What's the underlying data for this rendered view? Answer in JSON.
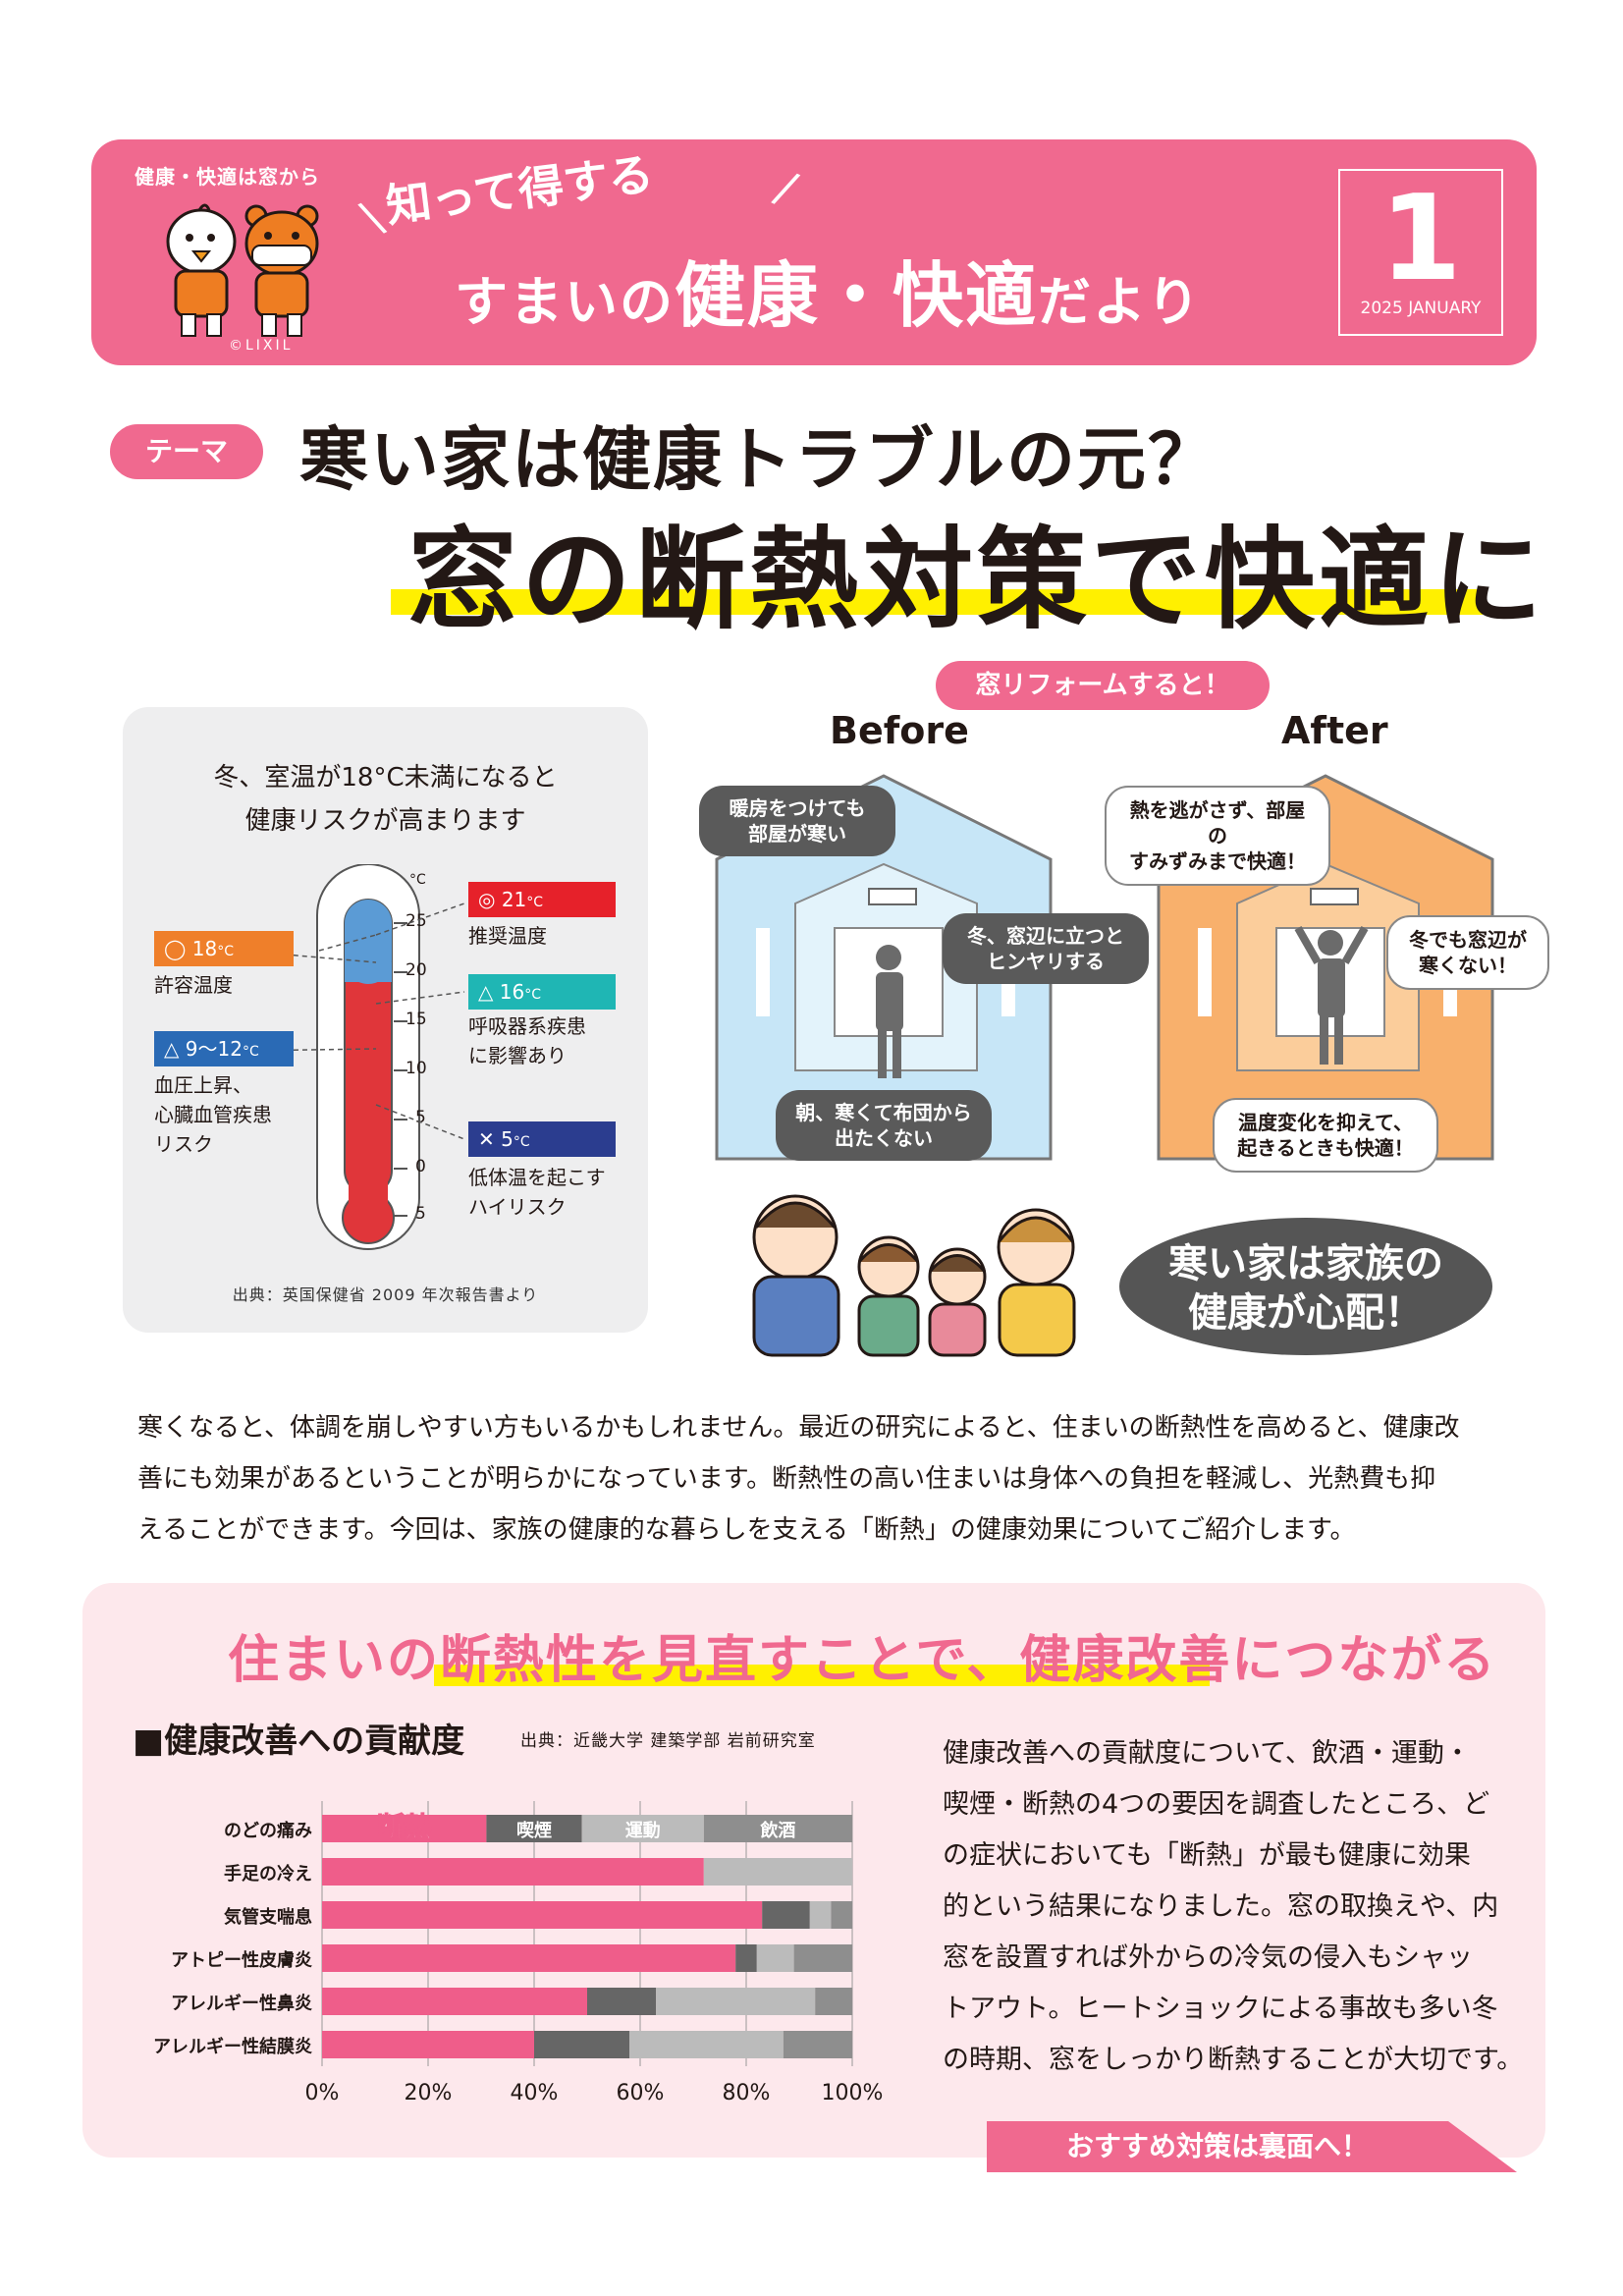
{
  "header": {
    "tagline": "健康・快適は窓から",
    "brand": "©LIXIL",
    "subtitle": "知って得する",
    "title_a": "すまいの",
    "title_b": "健康・快適",
    "title_c": "だより",
    "issue_number": "1",
    "issue_date": "2025 JANUARY",
    "color_accent": "#f0698f"
  },
  "theme": {
    "pill": "テーマ",
    "line1": "寒い家は健康トラブルの元？",
    "line2": "窓の断熱対策で快適に",
    "highlight_color": "#fff000"
  },
  "thermometer": {
    "caption_line1": "冬、室温が18°C未満になると",
    "caption_line2": "健康リスクが高まります",
    "unit": "°C",
    "scale": [
      "25",
      "20",
      "15",
      "10",
      "5",
      "0",
      "5"
    ],
    "levels": [
      {
        "symbol": "◎",
        "temp": "21",
        "unit": "°C",
        "note1": "推奨温度",
        "note2": "",
        "color": "#e6212a"
      },
      {
        "symbol": "◯",
        "temp": "18",
        "unit": "°C",
        "note1": "許容温度",
        "note2": "",
        "color": "#ef7f2a"
      },
      {
        "symbol": "△",
        "temp": "16",
        "unit": "°C",
        "note1": "呼吸器系疾患",
        "note2": "に影響あり",
        "color": "#1fb6b4"
      },
      {
        "symbol": "△",
        "temp": "9〜12",
        "unit": "°C",
        "note1": "血圧上昇、",
        "note2": "心臓血管疾患",
        "note3": "リスク",
        "color": "#2a6ab5"
      },
      {
        "symbol": "✕",
        "temp": "5",
        "unit": "°C",
        "note1": "低体温を起こす",
        "note2": "ハイリスク",
        "color": "#2b3d8f"
      }
    ],
    "source": "出典：英国保健省 2009 年次報告書より"
  },
  "reform": {
    "pill": "窓リフォームすると！",
    "before_label": "Before",
    "after_label": "After",
    "before_bubbles": [
      "暖房をつけても",
      "部屋が寒い",
      "冬、窓辺に立つと",
      "ヒンヤリする",
      "朝、寒くて布団から",
      "出たくない"
    ],
    "after_bubbles": [
      "熱を逃がさず、部屋の",
      "すみずみまで快適！",
      "冬でも窓辺が",
      "寒くない！",
      "温度変化を抑えて、",
      "起きるときも快適！"
    ],
    "family_line1": "寒い家は家族の",
    "family_line2": "健康が心配！"
  },
  "intro": {
    "line1": "寒くなると、体調を崩しやすい方もいるかもしれません。最近の研究によると、住まいの断熱性を高めると、健康改",
    "line2": "善にも効果があるということが明らかになっています。断熱性の高い住まいは身体への負担を軽減し、光熱費も抑",
    "line3": "えることができます。今回は、家族の健康的な暮らしを支える「断熱」の健康効果についてご紹介します。"
  },
  "section": {
    "title": "住まいの断熱性を見直すことで、健康改善につながる",
    "chart_title": "■健康改善への貢献度",
    "chart_source": "出典：近畿大学 建築学部 岩前研究室",
    "description": [
      "健康改善への貢献度について、飲酒・運動・",
      "喫煙・断熱の4つの要因を調査したところ、ど",
      "の症状においても「断熱」が最も健康に効果",
      "的という結果になりました。窓の取換えや、内",
      "窓を設置すれば外からの冷気の侵入もシャッ",
      "トアウト。ヒートショックによる事故も多い冬",
      "の時期、窓をしっかり断熱することが大切です。"
    ],
    "cta": "おすすめ対策は裏面へ！"
  },
  "chart_data": {
    "type": "bar",
    "orientation": "horizontal",
    "stacked": true,
    "title": "■健康改善への貢献度",
    "categories": [
      "のどの痛み",
      "手足の冷え",
      "気管支喘息",
      "アトピー性皮膚炎",
      "アレルギー性鼻炎",
      "アレルギー性結膜炎"
    ],
    "series": [
      {
        "name": "断熱",
        "color": "#ef5d8a",
        "values": [
          31,
          72,
          83,
          78,
          50,
          40
        ]
      },
      {
        "name": "喫煙",
        "color": "#666666",
        "values": [
          18,
          0,
          9,
          4,
          13,
          18
        ]
      },
      {
        "name": "運動",
        "color": "#bbbbbb",
        "values": [
          23,
          28,
          4,
          7,
          30,
          29
        ]
      },
      {
        "name": "飲酒",
        "color": "#8e8e8e",
        "values": [
          28,
          0,
          4,
          11,
          7,
          13
        ]
      }
    ],
    "xlim": [
      0,
      100
    ],
    "xticks": [
      "0%",
      "20%",
      "40%",
      "60%",
      "80%",
      "100%"
    ],
    "grid": true,
    "legend": "inside-top"
  }
}
